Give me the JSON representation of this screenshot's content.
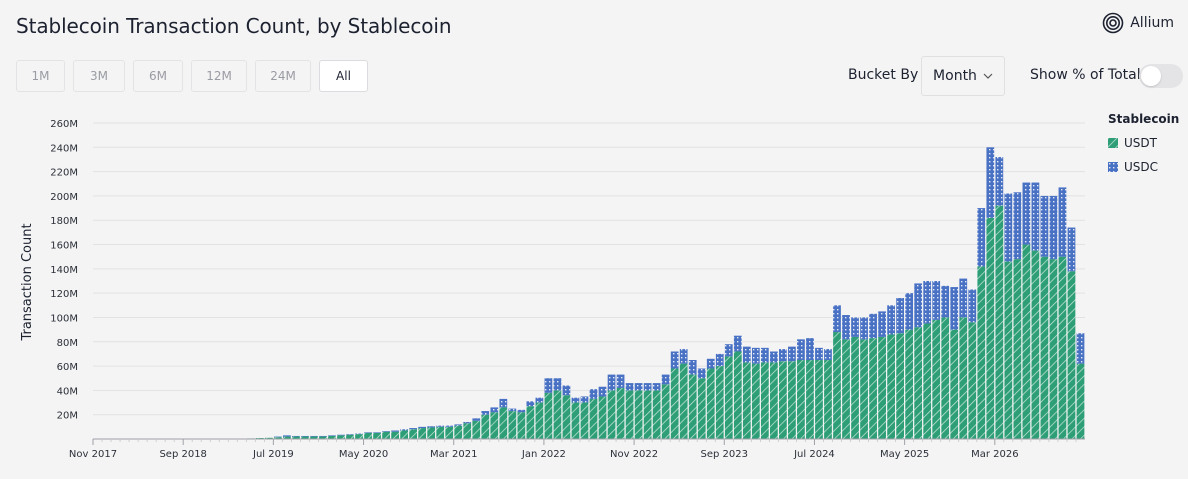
{
  "header": {
    "title": "Stablecoin Transaction Count, by Stablecoin",
    "brand": "Allium"
  },
  "controls": {
    "ranges": [
      "1M",
      "3M",
      "6M",
      "12M",
      "24M",
      "All"
    ],
    "active_range": "All",
    "bucket_label": "Bucket By",
    "bucket_value": "Month",
    "show_pct_label": "Show % of Total",
    "show_pct_enabled": false
  },
  "colors": {
    "usdt": "#2e9e77",
    "usdc": "#4a72c4",
    "grid": "#e2e2e4",
    "axis": "#9fa1a6"
  },
  "chart_data": {
    "type": "bar",
    "stacked": true,
    "ylabel": "Transaction Count",
    "ylim": [
      0,
      260000000
    ],
    "yticks": [
      "20M",
      "40M",
      "60M",
      "80M",
      "100M",
      "120M",
      "140M",
      "160M",
      "180M",
      "200M",
      "220M",
      "240M",
      "260M"
    ],
    "ytick_values": [
      20000000,
      40000000,
      60000000,
      80000000,
      100000000,
      120000000,
      140000000,
      160000000,
      180000000,
      200000000,
      220000000,
      240000000,
      260000000
    ],
    "xticks": [
      "Nov 2017",
      "Sep 2018",
      "Jul 2019",
      "May 2020",
      "Mar 2021",
      "Jan 2022",
      "Nov 2022",
      "Sep 2023",
      "Jul 2024",
      "May 2025",
      "Mar 2026"
    ],
    "legend_title": "Stablecoin",
    "legend_position": "right",
    "grid": true,
    "start_month": "2017-11",
    "series": [
      {
        "name": "USDT",
        "values": [
          0,
          0,
          0,
          0,
          0,
          0,
          0,
          0,
          0,
          0,
          0,
          0,
          0,
          0,
          0,
          0,
          0.3,
          0.5,
          0.8,
          1,
          1.5,
          2,
          2,
          2,
          2,
          2,
          2.5,
          3,
          3.5,
          4,
          5,
          5,
          6,
          6,
          7,
          8,
          9,
          9.5,
          10,
          10,
          11,
          13,
          15,
          20,
          22,
          26,
          23,
          22,
          27,
          30,
          38,
          40,
          36,
          30,
          30,
          33,
          35,
          40,
          42,
          40,
          40,
          40,
          40,
          45,
          58,
          62,
          53,
          50,
          58,
          60,
          68,
          72,
          63,
          62,
          63,
          63,
          64,
          64,
          65,
          65,
          65,
          65,
          88,
          82,
          84,
          82,
          83,
          84,
          86,
          87,
          90,
          92,
          95,
          98,
          100,
          90,
          100,
          96,
          142,
          182,
          192,
          146,
          148,
          160,
          155,
          150,
          148,
          150,
          138,
          62
        ]
      },
      {
        "name": "USDC",
        "values": [
          0,
          0,
          0,
          0,
          0,
          0,
          0,
          0,
          0,
          0,
          0,
          0,
          0,
          0,
          0,
          0,
          0,
          0,
          0,
          0,
          0.5,
          1,
          0.5,
          0.5,
          0.5,
          0.5,
          0.5,
          0.5,
          0.5,
          0.5,
          0.5,
          0.5,
          0.5,
          1,
          1,
          1,
          1,
          1,
          1,
          1,
          1,
          1,
          2,
          3,
          4,
          7,
          2,
          2,
          4,
          4,
          12,
          10,
          8,
          4,
          5,
          8,
          8,
          13,
          11,
          6,
          6,
          6,
          6,
          8,
          14,
          12,
          12,
          8,
          8,
          10,
          10,
          13,
          13,
          13,
          12,
          9,
          10,
          12,
          17,
          18,
          10,
          9,
          22,
          20,
          16,
          18,
          20,
          21,
          24,
          29,
          30,
          36,
          35,
          32,
          26,
          35,
          32,
          27,
          48,
          58,
          40,
          56,
          55,
          51,
          56,
          50,
          52,
          57,
          36,
          25
        ]
      }
    ]
  }
}
